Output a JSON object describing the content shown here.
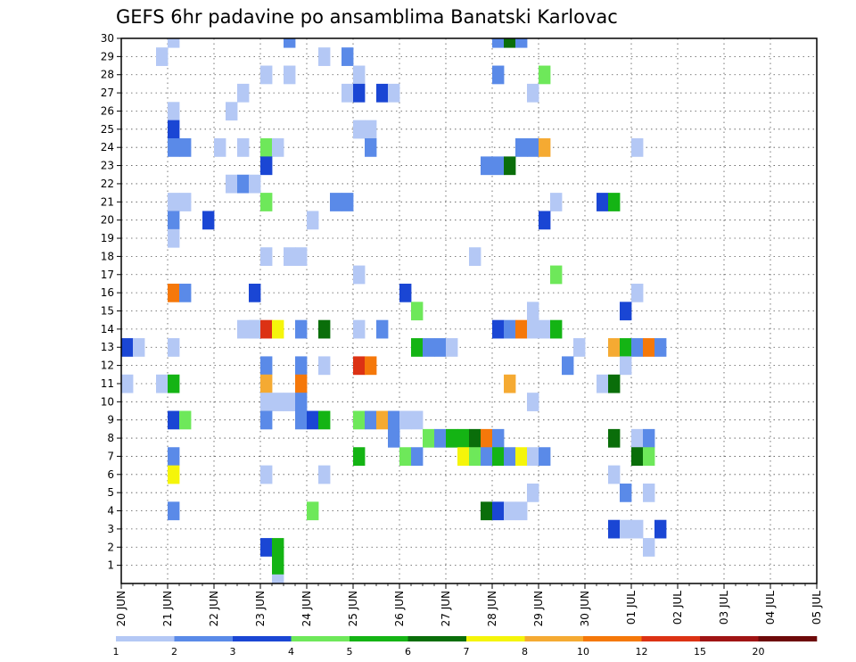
{
  "chart_data": {
    "type": "heatmap",
    "title": "GEFS 6hr padavine po ansamblima Banatski Karlovac",
    "xlabel": "",
    "ylabel": "",
    "x_tick_labels": [
      "20 JUN",
      "21 JUN",
      "22 JUN",
      "23 JUN",
      "24 JUN",
      "25 JUN",
      "26 JUN",
      "27 JUN",
      "28 JUN",
      "29 JUN",
      "30 JUN",
      "01 JUL",
      "02 JUL",
      "03 JUL",
      "04 JUL",
      "05 JUL"
    ],
    "y_ticks": [
      1,
      2,
      3,
      4,
      5,
      6,
      7,
      8,
      9,
      10,
      11,
      12,
      13,
      14,
      15,
      16,
      17,
      18,
      19,
      20,
      21,
      22,
      23,
      24,
      25,
      26,
      27,
      28,
      29,
      30
    ],
    "ylim": [
      0,
      30
    ],
    "steps_per_day": 4,
    "total_steps": 60,
    "grid": true,
    "legend": {
      "placement": "bottom",
      "labels": [
        "1",
        "2",
        "3",
        "4",
        "5",
        "6",
        "7",
        "8",
        "10",
        "12",
        "15",
        "20"
      ],
      "colors": [
        "#b4c8f5",
        "#5a8ae8",
        "#1a46d4",
        "#6ee85a",
        "#14b414",
        "#0a6e0a",
        "#f5f50a",
        "#f5aa32",
        "#f5780a",
        "#dc3214",
        "#a01414",
        "#6e0a0a"
      ]
    },
    "colors": [
      "#b4c8f5",
      "#5a8ae8",
      "#1a46d4",
      "#6ee85a",
      "#14b414",
      "#0a6e0a",
      "#f5f50a",
      "#f5aa32",
      "#f5780a",
      "#dc3214",
      "#a01414",
      "#6e0a0a"
    ],
    "cell_format": "[time_step_index, ensemble_member, color_class_index]",
    "cells": [
      [
        4,
        30,
        0
      ],
      [
        14,
        30,
        1
      ],
      [
        32,
        30,
        1
      ],
      [
        33,
        30,
        5
      ],
      [
        34,
        30,
        1
      ],
      [
        3,
        29,
        0
      ],
      [
        17,
        29,
        0
      ],
      [
        19,
        29,
        1
      ],
      [
        12,
        28,
        0
      ],
      [
        14,
        28,
        0
      ],
      [
        20,
        28,
        0
      ],
      [
        32,
        28,
        1
      ],
      [
        36,
        28,
        3
      ],
      [
        10,
        27,
        0
      ],
      [
        19,
        27,
        0
      ],
      [
        20,
        27,
        2
      ],
      [
        22,
        27,
        2
      ],
      [
        23,
        27,
        0
      ],
      [
        35,
        27,
        0
      ],
      [
        4,
        26,
        0
      ],
      [
        9,
        26,
        0
      ],
      [
        4,
        25,
        2
      ],
      [
        20,
        25,
        0
      ],
      [
        21,
        25,
        0
      ],
      [
        4,
        24,
        1
      ],
      [
        5,
        24,
        1
      ],
      [
        8,
        24,
        0
      ],
      [
        10,
        24,
        0
      ],
      [
        12,
        24,
        3
      ],
      [
        13,
        24,
        0
      ],
      [
        21,
        24,
        1
      ],
      [
        34,
        24,
        1
      ],
      [
        35,
        24,
        1
      ],
      [
        36,
        24,
        7
      ],
      [
        44,
        24,
        0
      ],
      [
        12,
        23,
        2
      ],
      [
        31,
        23,
        1
      ],
      [
        32,
        23,
        1
      ],
      [
        33,
        23,
        5
      ],
      [
        9,
        22,
        0
      ],
      [
        10,
        22,
        1
      ],
      [
        11,
        22,
        0
      ],
      [
        4,
        21,
        0
      ],
      [
        5,
        21,
        0
      ],
      [
        12,
        21,
        3
      ],
      [
        18,
        21,
        1
      ],
      [
        19,
        21,
        1
      ],
      [
        37,
        21,
        0
      ],
      [
        41,
        21,
        2
      ],
      [
        42,
        21,
        4
      ],
      [
        4,
        20,
        1
      ],
      [
        7,
        20,
        2
      ],
      [
        16,
        20,
        0
      ],
      [
        36,
        20,
        2
      ],
      [
        4,
        19,
        0
      ],
      [
        12,
        18,
        0
      ],
      [
        14,
        18,
        0
      ],
      [
        15,
        18,
        0
      ],
      [
        30,
        18,
        0
      ],
      [
        20,
        17,
        0
      ],
      [
        37,
        17,
        3
      ],
      [
        4,
        16,
        8
      ],
      [
        5,
        16,
        1
      ],
      [
        11,
        16,
        2
      ],
      [
        24,
        16,
        2
      ],
      [
        44,
        16,
        0
      ],
      [
        25,
        15,
        3
      ],
      [
        35,
        15,
        0
      ],
      [
        43,
        15,
        2
      ],
      [
        10,
        14,
        0
      ],
      [
        11,
        14,
        0
      ],
      [
        11,
        14,
        0
      ],
      [
        12,
        14,
        9
      ],
      [
        13,
        14,
        6
      ],
      [
        15,
        14,
        1
      ],
      [
        17,
        14,
        5
      ],
      [
        20,
        14,
        0
      ],
      [
        22,
        14,
        1
      ],
      [
        32,
        14,
        2
      ],
      [
        33,
        14,
        1
      ],
      [
        34,
        14,
        8
      ],
      [
        35,
        14,
        0
      ],
      [
        36,
        14,
        0
      ],
      [
        37,
        14,
        4
      ],
      [
        0,
        13,
        2
      ],
      [
        1,
        13,
        0
      ],
      [
        4,
        13,
        0
      ],
      [
        25,
        13,
        4
      ],
      [
        26,
        13,
        1
      ],
      [
        27,
        13,
        1
      ],
      [
        28,
        13,
        0
      ],
      [
        39,
        13,
        0
      ],
      [
        42,
        13,
        7
      ],
      [
        43,
        13,
        4
      ],
      [
        44,
        13,
        1
      ],
      [
        45,
        13,
        8
      ],
      [
        46,
        13,
        1
      ],
      [
        12,
        12,
        1
      ],
      [
        15,
        12,
        1
      ],
      [
        17,
        12,
        0
      ],
      [
        20,
        12,
        9
      ],
      [
        21,
        12,
        8
      ],
      [
        38,
        12,
        1
      ],
      [
        43,
        12,
        0
      ],
      [
        0,
        11,
        0
      ],
      [
        3,
        11,
        0
      ],
      [
        4,
        11,
        4
      ],
      [
        12,
        11,
        7
      ],
      [
        15,
        11,
        8
      ],
      [
        33,
        11,
        7
      ],
      [
        41,
        11,
        0
      ],
      [
        42,
        11,
        5
      ],
      [
        12,
        10,
        0
      ],
      [
        13,
        10,
        0
      ],
      [
        14,
        10,
        0
      ],
      [
        15,
        10,
        1
      ],
      [
        35,
        10,
        0
      ],
      [
        4,
        9,
        2
      ],
      [
        5,
        9,
        3
      ],
      [
        12,
        9,
        1
      ],
      [
        15,
        9,
        1
      ],
      [
        16,
        9,
        2
      ],
      [
        17,
        9,
        4
      ],
      [
        20,
        9,
        3
      ],
      [
        21,
        9,
        1
      ],
      [
        22,
        9,
        7
      ],
      [
        23,
        9,
        1
      ],
      [
        24,
        9,
        0
      ],
      [
        25,
        9,
        0
      ],
      [
        23,
        8,
        1
      ],
      [
        26,
        8,
        3
      ],
      [
        27,
        8,
        1
      ],
      [
        28,
        8,
        4
      ],
      [
        29,
        8,
        4
      ],
      [
        30,
        8,
        5
      ],
      [
        31,
        8,
        8
      ],
      [
        32,
        8,
        1
      ],
      [
        42,
        8,
        5
      ],
      [
        44,
        8,
        0
      ],
      [
        45,
        8,
        1
      ],
      [
        4,
        7,
        1
      ],
      [
        20,
        7,
        4
      ],
      [
        24,
        7,
        3
      ],
      [
        25,
        7,
        1
      ],
      [
        29,
        7,
        6
      ],
      [
        30,
        7,
        3
      ],
      [
        31,
        7,
        1
      ],
      [
        32,
        7,
        4
      ],
      [
        33,
        7,
        1
      ],
      [
        34,
        7,
        6
      ],
      [
        35,
        7,
        0
      ],
      [
        36,
        7,
        1
      ],
      [
        44,
        7,
        5
      ],
      [
        45,
        7,
        3
      ],
      [
        4,
        6,
        6
      ],
      [
        12,
        6,
        0
      ],
      [
        17,
        6,
        0
      ],
      [
        42,
        6,
        0
      ],
      [
        35,
        5,
        0
      ],
      [
        43,
        5,
        1
      ],
      [
        45,
        5,
        0
      ],
      [
        4,
        4,
        1
      ],
      [
        16,
        4,
        3
      ],
      [
        31,
        4,
        5
      ],
      [
        32,
        4,
        2
      ],
      [
        33,
        4,
        0
      ],
      [
        34,
        4,
        0
      ],
      [
        42,
        3,
        2
      ],
      [
        43,
        3,
        0
      ],
      [
        44,
        3,
        0
      ],
      [
        46,
        3,
        2
      ],
      [
        12,
        2,
        2
      ],
      [
        13,
        2,
        4
      ],
      [
        45,
        2,
        0
      ],
      [
        13,
        1,
        4
      ],
      [
        13,
        0,
        0
      ]
    ]
  }
}
